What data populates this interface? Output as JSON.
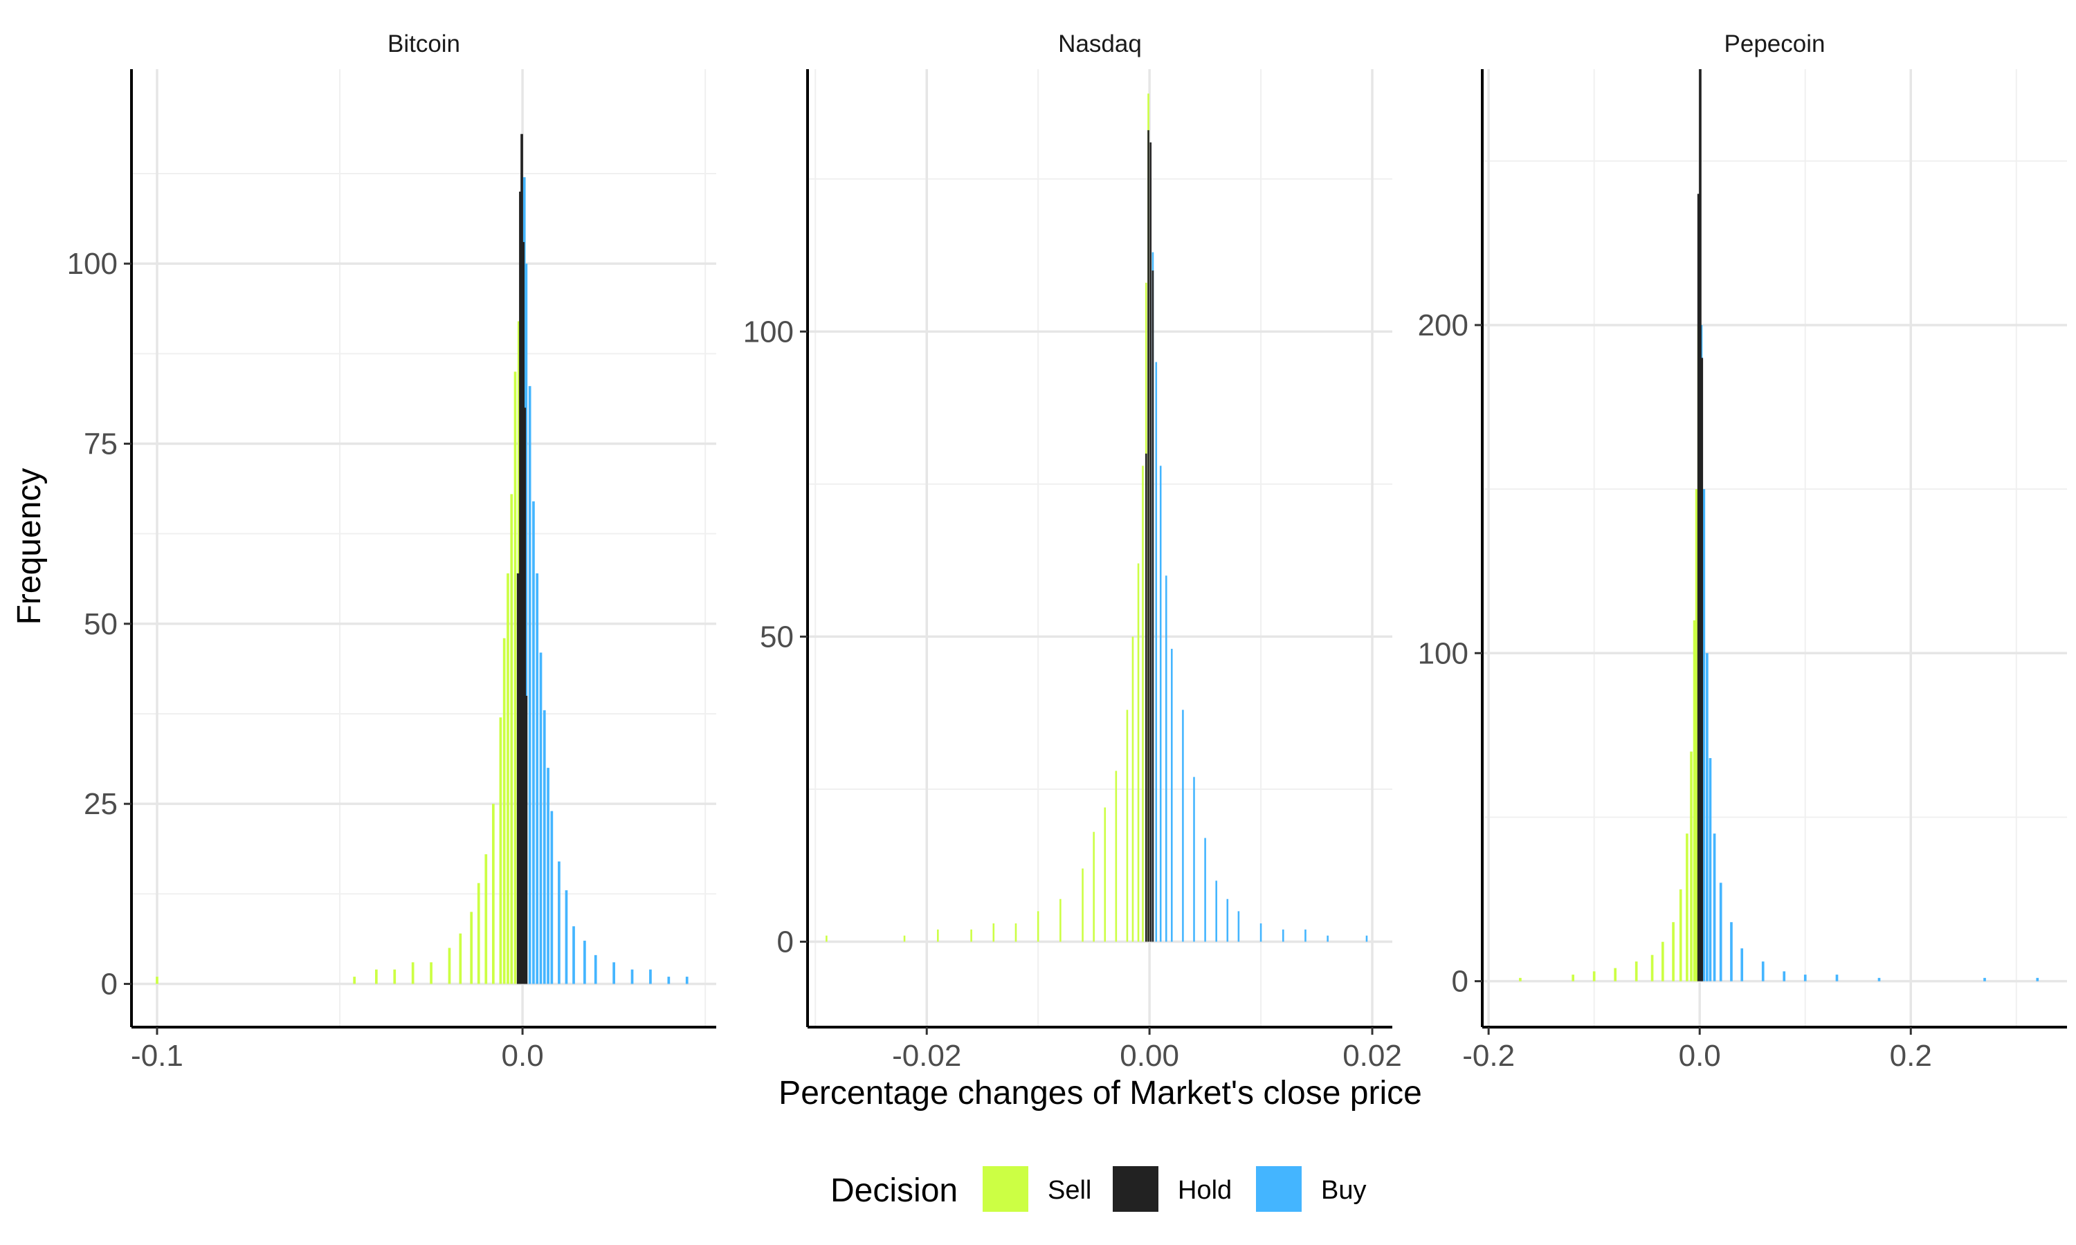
{
  "chart_data": {
    "type": "bar",
    "subtype": "faceted-histogram",
    "xlabel": "Percentage changes of Market's close price",
    "ylabel": "Frequency",
    "grid": true,
    "legend": {
      "title": "Decision",
      "position": "bottom",
      "items": [
        {
          "name": "Sell",
          "color": "#CCFF44"
        },
        {
          "name": "Hold",
          "color": "#222222"
        },
        {
          "name": "Buy",
          "color": "#44B5FF"
        }
      ]
    },
    "panels": [
      {
        "title": "Bitcoin",
        "xlim": [
          -0.107,
          0.053
        ],
        "ylim": [
          -6,
          127
        ],
        "xticks": [
          -0.1,
          0.0
        ],
        "xtick_labels": [
          "-0.1",
          "0.0"
        ],
        "yticks": [
          0,
          25,
          50,
          75,
          100
        ],
        "ytick_labels": [
          "0",
          "25",
          "50",
          "75",
          "100"
        ],
        "bin_width": 0.0007,
        "sell": [
          [
            -0.1,
            1
          ],
          [
            -0.046,
            1
          ],
          [
            -0.04,
            2
          ],
          [
            -0.035,
            2
          ],
          [
            -0.03,
            3
          ],
          [
            -0.025,
            3
          ],
          [
            -0.02,
            5
          ],
          [
            -0.017,
            7
          ],
          [
            -0.014,
            10
          ],
          [
            -0.012,
            14
          ],
          [
            -0.01,
            18
          ],
          [
            -0.008,
            25
          ],
          [
            -0.006,
            37
          ],
          [
            -0.005,
            48
          ],
          [
            -0.004,
            57
          ],
          [
            -0.003,
            68
          ],
          [
            -0.002,
            85
          ],
          [
            -0.001,
            92
          ],
          [
            -0.0005,
            102
          ]
        ],
        "hold": [
          [
            -0.0012,
            57
          ],
          [
            -0.0006,
            110
          ],
          [
            -0.0002,
            118
          ],
          [
            0.0002,
            103
          ],
          [
            0.0006,
            80
          ],
          [
            0.001,
            40
          ]
        ],
        "buy": [
          [
            0.0005,
            112
          ],
          [
            0.001,
            100
          ],
          [
            0.002,
            83
          ],
          [
            0.003,
            67
          ],
          [
            0.004,
            57
          ],
          [
            0.005,
            46
          ],
          [
            0.006,
            38
          ],
          [
            0.007,
            30
          ],
          [
            0.008,
            24
          ],
          [
            0.01,
            17
          ],
          [
            0.012,
            13
          ],
          [
            0.014,
            8
          ],
          [
            0.017,
            6
          ],
          [
            0.02,
            4
          ],
          [
            0.025,
            3
          ],
          [
            0.03,
            2
          ],
          [
            0.035,
            2
          ],
          [
            0.04,
            1
          ],
          [
            0.045,
            1
          ]
        ]
      },
      {
        "title": "Nasdaq",
        "xlim": [
          -0.0307,
          0.0218
        ],
        "ylim": [
          -14,
          143
        ],
        "xticks": [
          -0.02,
          0.0,
          0.02
        ],
        "xtick_labels": [
          "-0.02",
          "0.00",
          "0.02"
        ],
        "yticks": [
          0,
          50,
          100
        ],
        "ytick_labels": [
          "0",
          "50",
          "100"
        ],
        "bin_width": 0.00016,
        "sell": [
          [
            -0.029,
            1
          ],
          [
            -0.022,
            1
          ],
          [
            -0.019,
            2
          ],
          [
            -0.016,
            2
          ],
          [
            -0.014,
            3
          ],
          [
            -0.012,
            3
          ],
          [
            -0.01,
            5
          ],
          [
            -0.008,
            7
          ],
          [
            -0.006,
            12
          ],
          [
            -0.005,
            18
          ],
          [
            -0.004,
            22
          ],
          [
            -0.003,
            28
          ],
          [
            -0.002,
            38
          ],
          [
            -0.0015,
            50
          ],
          [
            -0.001,
            62
          ],
          [
            -0.0006,
            78
          ],
          [
            -0.0003,
            108
          ],
          [
            -0.0001,
            139
          ]
        ],
        "hold": [
          [
            -0.0003,
            80
          ],
          [
            -0.0001,
            133
          ],
          [
            0.0001,
            131
          ],
          [
            0.0003,
            110
          ]
        ],
        "buy": [
          [
            0.0003,
            113
          ],
          [
            0.0006,
            95
          ],
          [
            0.001,
            78
          ],
          [
            0.0015,
            60
          ],
          [
            0.002,
            48
          ],
          [
            0.003,
            38
          ],
          [
            0.004,
            27
          ],
          [
            0.005,
            17
          ],
          [
            0.006,
            10
          ],
          [
            0.007,
            7
          ],
          [
            0.008,
            5
          ],
          [
            0.01,
            3
          ],
          [
            0.012,
            2
          ],
          [
            0.014,
            2
          ],
          [
            0.016,
            1
          ],
          [
            0.0195,
            1
          ]
        ]
      },
      {
        "title": "Pepecoin",
        "xlim": [
          -0.206,
          0.348
        ],
        "ylim": [
          -14,
          278
        ],
        "xticks": [
          -0.2,
          0.0,
          0.2
        ],
        "xtick_labels": [
          "-0.2",
          "0.0",
          "0.2"
        ],
        "yticks": [
          0,
          100,
          200
        ],
        "ytick_labels": [
          "0",
          "100",
          "200"
        ],
        "bin_width": 0.0024,
        "sell": [
          [
            -0.17,
            1
          ],
          [
            -0.12,
            2
          ],
          [
            -0.1,
            3
          ],
          [
            -0.08,
            4
          ],
          [
            -0.06,
            6
          ],
          [
            -0.045,
            8
          ],
          [
            -0.035,
            12
          ],
          [
            -0.025,
            18
          ],
          [
            -0.018,
            28
          ],
          [
            -0.012,
            45
          ],
          [
            -0.008,
            70
          ],
          [
            -0.005,
            110
          ],
          [
            -0.003,
            150
          ],
          [
            -0.001,
            200
          ]
        ],
        "hold": [
          [
            -0.001,
            240
          ],
          [
            0.0005,
            278
          ],
          [
            0.002,
            190
          ]
        ],
        "buy": [
          [
            0.0015,
            200
          ],
          [
            0.004,
            150
          ],
          [
            0.007,
            100
          ],
          [
            0.01,
            68
          ],
          [
            0.014,
            45
          ],
          [
            0.02,
            30
          ],
          [
            0.03,
            18
          ],
          [
            0.04,
            10
          ],
          [
            0.06,
            6
          ],
          [
            0.08,
            3
          ],
          [
            0.1,
            2
          ],
          [
            0.13,
            2
          ],
          [
            0.17,
            1
          ],
          [
            0.27,
            1
          ],
          [
            0.32,
            1
          ]
        ]
      }
    ]
  }
}
